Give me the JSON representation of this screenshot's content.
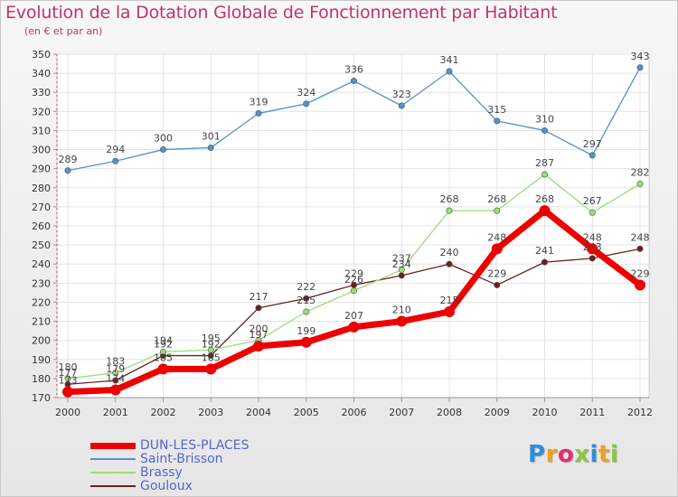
{
  "title": "Evolution de la Dotation Globale de Fonctionnement par Habitant",
  "subtitle": "(en € et par an)",
  "logo": {
    "text": "Proxiti",
    "letters": [
      {
        "char": "P",
        "color": "#2c8fd6"
      },
      {
        "char": "r",
        "color": "#f0a020"
      },
      {
        "char": "o",
        "color": "#e03070"
      },
      {
        "char": "x",
        "color": "#8cc63f"
      },
      {
        "char": "i",
        "color": "#2c8fd6"
      },
      {
        "char": "t",
        "color": "#f0a020"
      },
      {
        "char": "i",
        "color": "#8cc63f"
      }
    ]
  },
  "chart_data": {
    "type": "line",
    "title": "Evolution de la Dotation Globale de Fonctionnement par Habitant",
    "subtitle": "(en € et par an)",
    "x": [
      2000,
      2001,
      2002,
      2003,
      2004,
      2005,
      2006,
      2007,
      2008,
      2009,
      2010,
      2011,
      2012
    ],
    "ylim": [
      170,
      350
    ],
    "yticks": [
      170,
      180,
      190,
      200,
      210,
      220,
      230,
      240,
      250,
      260,
      270,
      280,
      290,
      300,
      310,
      320,
      330,
      340,
      350
    ],
    "grid": true,
    "legend": "bottom-left",
    "series": [
      {
        "name": "DUN-LES-PLACES",
        "color": "#ee0000",
        "values": [
          173,
          174,
          185,
          185,
          197,
          199,
          207,
          210,
          215,
          248,
          268,
          248,
          229
        ]
      },
      {
        "name": "Saint-Brisson",
        "color": "#4f94cd",
        "values": [
          289,
          294,
          300,
          301,
          319,
          324,
          336,
          323,
          341,
          315,
          310,
          297,
          343
        ]
      },
      {
        "name": "Brassy",
        "color": "#99dd77",
        "values": [
          180,
          183,
          194,
          195,
          200,
          215,
          226,
          237,
          268,
          268,
          287,
          267,
          282
        ]
      },
      {
        "name": "Gouloux",
        "color": "#6b2020",
        "values": [
          177,
          179,
          192,
          192,
          217,
          222,
          229,
          234,
          240,
          229,
          241,
          243,
          248
        ]
      }
    ]
  }
}
